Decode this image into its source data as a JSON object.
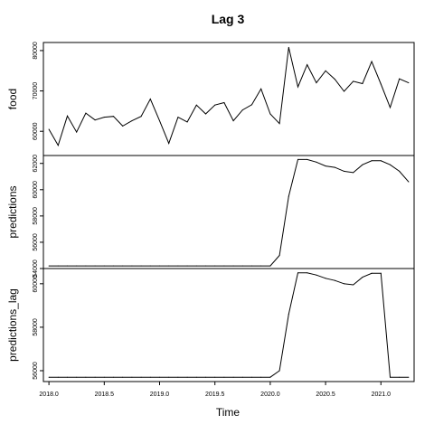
{
  "chart_data": {
    "type": "line",
    "title": "Lag  3",
    "xlabel": "Time",
    "x_ticks": [
      2018.0,
      2018.5,
      2019.0,
      2019.5,
      2020.0,
      2020.5,
      2021.0
    ],
    "x_tick_labels": [
      "2018.0",
      "2018.5",
      "2019.0",
      "2019.5",
      "2020.0",
      "2020.5",
      "2021.0"
    ],
    "x": [
      2018.0,
      2018.0833,
      2018.1667,
      2018.25,
      2018.3333,
      2018.4167,
      2018.5,
      2018.5833,
      2018.6667,
      2018.75,
      2018.8333,
      2018.9167,
      2019.0,
      2019.0833,
      2019.1667,
      2019.25,
      2019.3333,
      2019.4167,
      2019.5,
      2019.5833,
      2019.6667,
      2019.75,
      2019.8333,
      2019.9167,
      2020.0,
      2020.0833,
      2020.1667,
      2020.25,
      2020.3333,
      2020.4167,
      2020.5,
      2020.5833,
      2020.6667,
      2020.75,
      2020.8333,
      2020.9167,
      2021.0,
      2021.0833,
      2021.1667,
      2021.25
    ],
    "panels": [
      {
        "name": "food",
        "ylabel": "food",
        "ylim": [
          54000,
          82000
        ],
        "y_ticks": [
          60000,
          70000,
          80000
        ],
        "y_tick_labels": [
          "60000",
          "70000",
          "80000"
        ],
        "values": [
          60500,
          56500,
          63800,
          59800,
          64500,
          62800,
          63500,
          63700,
          61300,
          62600,
          63700,
          68000,
          62600,
          57000,
          63500,
          62300,
          66500,
          64300,
          66500,
          67100,
          62600,
          65300,
          66600,
          70500,
          64300,
          61900,
          80800,
          71000,
          76500,
          72000,
          75000,
          72900,
          69900,
          72400,
          71800,
          77300,
          71700,
          65900,
          73000,
          72000
        ]
      },
      {
        "name": "predictions",
        "ylabel": "predictions",
        "ylim": [
          54000,
          62600
        ],
        "y_ticks": [
          54000,
          56000,
          58000,
          60000,
          62000
        ],
        "y_tick_labels": [
          "54000",
          "56000",
          "58000",
          "60000",
          "62000"
        ],
        "values": [
          54200,
          54200,
          54200,
          54200,
          54200,
          54200,
          54200,
          54200,
          54200,
          54200,
          54200,
          54200,
          54200,
          54200,
          54200,
          54200,
          54200,
          54200,
          54200,
          54200,
          54200,
          54200,
          54200,
          54200,
          54200,
          55000,
          59500,
          62300,
          62300,
          62100,
          61800,
          61700,
          61400,
          61300,
          61900,
          62200,
          62200,
          61900,
          61400,
          60600
        ]
      },
      {
        "name": "predictions_lag",
        "ylabel": "predictions_lag",
        "ylim": [
          55500,
          60700
        ],
        "y_ticks": [
          56000,
          58000,
          60000
        ],
        "y_tick_labels": [
          "56000",
          "58000",
          "60000"
        ],
        "values": [
          55700,
          55700,
          55700,
          55700,
          55700,
          55700,
          55700,
          55700,
          55700,
          55700,
          55700,
          55700,
          55700,
          55700,
          55700,
          55700,
          55700,
          55700,
          55700,
          55700,
          55700,
          55700,
          55700,
          55700,
          55700,
          56000,
          58600,
          60500,
          60500,
          60400,
          60250,
          60150,
          60000,
          59950,
          60300,
          60480,
          60480,
          55700,
          55700,
          55700
        ]
      }
    ],
    "grid": false,
    "legend": "none"
  }
}
